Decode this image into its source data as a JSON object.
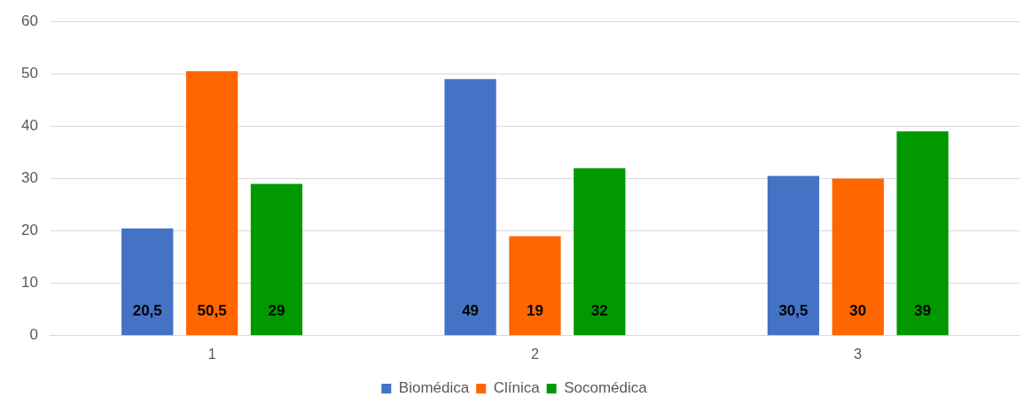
{
  "chart_data": {
    "type": "bar",
    "categories": [
      "1",
      "2",
      "3"
    ],
    "series": [
      {
        "name": "Biomédica",
        "color": "#4472c4",
        "values": [
          20.5,
          49,
          30.5
        ],
        "value_labels": [
          "20,5",
          "49",
          "30,5"
        ]
      },
      {
        "name": "Clínica",
        "color": "#ff6600",
        "values": [
          50.5,
          19,
          30
        ],
        "value_labels": [
          "50,5",
          "19",
          "30"
        ]
      },
      {
        "name": "Socomédica",
        "color": "#009900",
        "values": [
          29,
          32,
          39
        ],
        "value_labels": [
          "29",
          "32",
          "39"
        ]
      }
    ],
    "ylim": [
      0,
      60
    ],
    "yticks": [
      0,
      10,
      20,
      30,
      40,
      50,
      60
    ],
    "grid": "y",
    "legend": "bottom"
  }
}
